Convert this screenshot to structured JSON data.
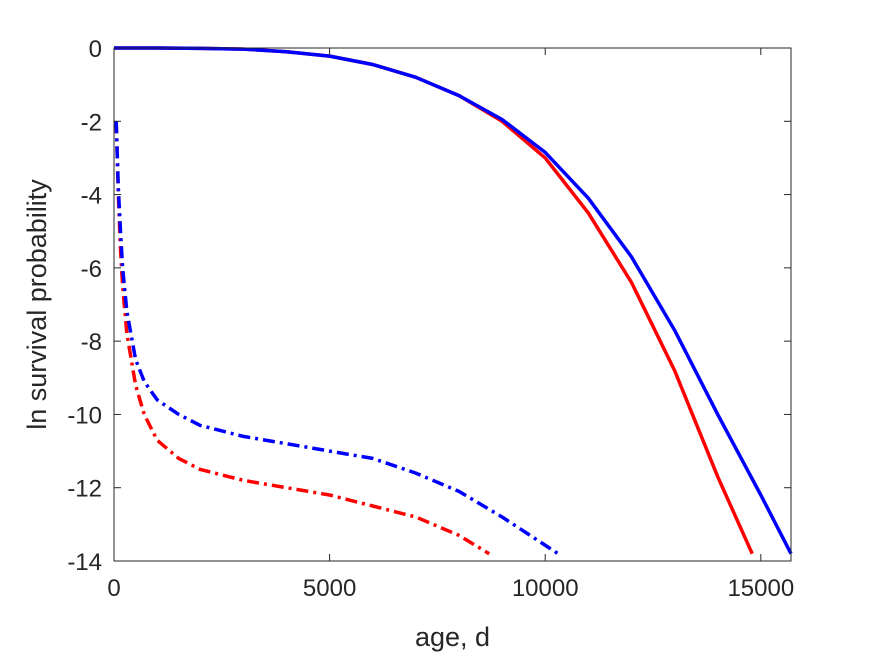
{
  "chart_data": {
    "type": "line",
    "title": "",
    "xlabel": "age, d",
    "ylabel": "ln survival probability",
    "xlim": [
      0,
      15700
    ],
    "ylim": [
      -14,
      0
    ],
    "xticks": [
      0,
      5000,
      10000,
      15000
    ],
    "xtick_labels": [
      "0",
      "5000",
      "10000",
      "15000"
    ],
    "yticks": [
      0,
      -2,
      -4,
      -6,
      -8,
      -10,
      -12,
      -14
    ],
    "ytick_labels": [
      "0",
      "-2",
      "-4",
      "-6",
      "-8",
      "-10",
      "-12",
      "-14"
    ],
    "grid": false,
    "legend": "none",
    "series": [
      {
        "color": "#ff0000",
        "style": "solid",
        "x": [
          0,
          1000,
          2000,
          3000,
          4000,
          5000,
          6000,
          7000,
          8000,
          9000,
          10000,
          11000,
          12000,
          13000,
          14000,
          14800
        ],
        "y": [
          0,
          0,
          -0.01,
          -0.03,
          -0.1,
          -0.22,
          -0.45,
          -0.8,
          -1.3,
          -2.0,
          -3.0,
          -4.5,
          -6.4,
          -8.8,
          -11.7,
          -13.8
        ]
      },
      {
        "color": "#0000ff",
        "style": "solid",
        "x": [
          0,
          1000,
          2000,
          3000,
          4000,
          5000,
          6000,
          7000,
          8000,
          9000,
          10000,
          11000,
          12000,
          13000,
          14000,
          15000,
          15700
        ],
        "y": [
          0,
          0,
          -0.01,
          -0.03,
          -0.1,
          -0.22,
          -0.45,
          -0.8,
          -1.3,
          -1.95,
          -2.85,
          -4.1,
          -5.7,
          -7.7,
          -10.0,
          -12.2,
          -13.8
        ]
      },
      {
        "color": "#ff0000",
        "style": "dashdot",
        "x": [
          50,
          100,
          150,
          200,
          300,
          500,
          700,
          1000,
          1500,
          2000,
          3000,
          4000,
          5000,
          6000,
          7000,
          8000,
          8700
        ],
        "y": [
          -2.0,
          -4.0,
          -5.5,
          -6.5,
          -7.8,
          -9.2,
          -10.0,
          -10.7,
          -11.2,
          -11.5,
          -11.8,
          -12.0,
          -12.2,
          -12.5,
          -12.8,
          -13.3,
          -13.8
        ]
      },
      {
        "color": "#0000ff",
        "style": "dashdot",
        "x": [
          50,
          100,
          150,
          200,
          300,
          500,
          700,
          1000,
          1500,
          2000,
          3000,
          4000,
          5000,
          6000,
          7000,
          8000,
          9000,
          10300
        ],
        "y": [
          -2.0,
          -3.8,
          -5.0,
          -6.0,
          -7.2,
          -8.5,
          -9.1,
          -9.6,
          -10.0,
          -10.3,
          -10.6,
          -10.8,
          -11.0,
          -11.2,
          -11.6,
          -12.1,
          -12.8,
          -13.8
        ]
      }
    ]
  }
}
